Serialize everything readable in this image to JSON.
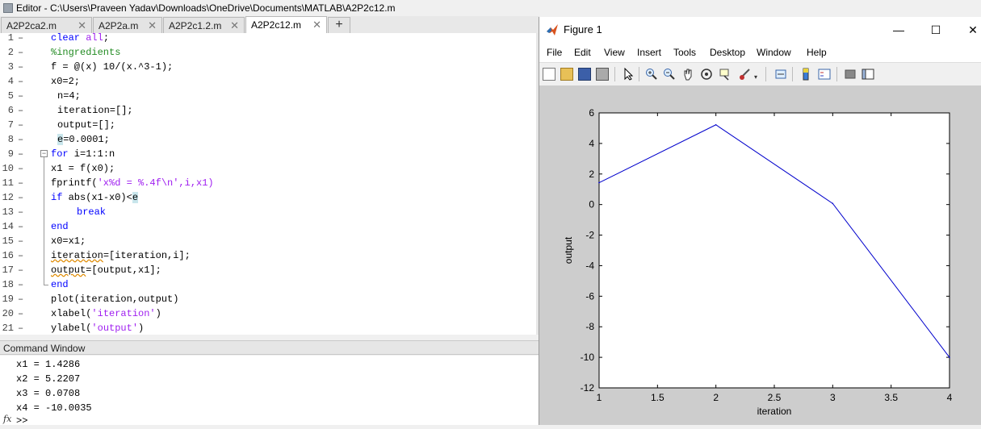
{
  "editor": {
    "title": "Editor - C:\\Users\\Praveen Yadav\\Downloads\\OneDrive\\Documents\\MATLAB\\A2P2c12.m",
    "tabs": [
      "A2P2ca2.m",
      "A2P2a.m",
      "A2P2c1.2.m",
      "A2P2c12.m"
    ],
    "add_tab": "+",
    "close_glyph": "✕",
    "lines": [
      {
        "n": "1",
        "code": "clear all;"
      },
      {
        "n": "2",
        "code": "%ingredients"
      },
      {
        "n": "3",
        "code": "f = @(x) 10/(x.^3-1);"
      },
      {
        "n": "4",
        "code": "x0=2;"
      },
      {
        "n": "5",
        "code": "n=4;"
      },
      {
        "n": "6",
        "code": "iteration=[];"
      },
      {
        "n": "7",
        "code": "output=[];"
      },
      {
        "n": "8",
        "code": "e=0.0001;"
      },
      {
        "n": "9",
        "code": "for i=1:1:n"
      },
      {
        "n": "10",
        "code": "x1 = f(x0);"
      },
      {
        "n": "11",
        "code": "fprintf('x%d = %.4f\\n',i,x1)"
      },
      {
        "n": "12",
        "code": "if abs(x1-x0)<e"
      },
      {
        "n": "13",
        "code": "break"
      },
      {
        "n": "14",
        "code": "end"
      },
      {
        "n": "15",
        "code": "x0=x1;"
      },
      {
        "n": "16",
        "code": "iteration=[iteration,i];"
      },
      {
        "n": "17",
        "code": "output=[output,x1];"
      },
      {
        "n": "18",
        "code": "end"
      },
      {
        "n": "19",
        "code": "plot(iteration,output)"
      },
      {
        "n": "20",
        "code": "xlabel('iteration')"
      },
      {
        "n": "21",
        "code": "ylabel('output')"
      }
    ],
    "dash": "–"
  },
  "command_window": {
    "title": "Command Window",
    "lines": [
      "x1 = 1.4286",
      "x2 = 5.2207",
      "x3 = 0.0708",
      "x4 = -10.0035"
    ],
    "fx": "fx",
    "prompt": ">>"
  },
  "figure": {
    "title": "Figure 1",
    "window_buttons": {
      "minimize": "—",
      "maximize": "☐",
      "close": "✕"
    },
    "menu": [
      "File",
      "Edit",
      "View",
      "Insert",
      "Tools",
      "Desktop",
      "Window",
      "Help"
    ],
    "toolbar_icons": [
      "new-figure-icon",
      "open-file-icon",
      "save-icon",
      "print-icon",
      "pointer-icon",
      "zoom-in-icon",
      "zoom-out-icon",
      "pan-icon",
      "rotate-icon",
      "data-cursor-icon",
      "brush-icon",
      "link-icon",
      "colorbar-icon",
      "legend-icon",
      "hide-plot-tools-icon",
      "show-plot-tools-icon"
    ]
  },
  "colors": {
    "line": "#0000cc",
    "keyword": "#0000ff",
    "string": "#a020f0",
    "comment": "#228b22"
  },
  "chart_data": {
    "type": "line",
    "x": [
      1,
      2,
      3,
      4
    ],
    "series": [
      {
        "values": [
          1.4286,
          5.2207,
          0.0708,
          -10.0035
        ]
      }
    ],
    "xlabel": "iteration",
    "ylabel": "output",
    "xlim": [
      1,
      4
    ],
    "ylim": [
      -12,
      6
    ],
    "xticks": [
      "1",
      "1.5",
      "2",
      "2.5",
      "3",
      "3.5",
      "4"
    ],
    "yticks": [
      "6",
      "4",
      "2",
      "0",
      "-2",
      "-4",
      "-6",
      "-8",
      "-10",
      "-12"
    ],
    "grid": false
  }
}
